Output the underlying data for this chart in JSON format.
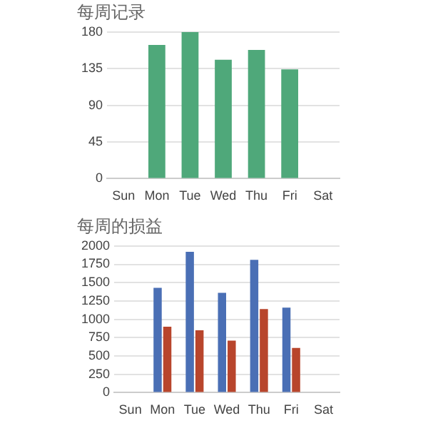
{
  "chart_data": [
    {
      "type": "bar",
      "title": "每周记录",
      "categories": [
        "Sun",
        "Mon",
        "Tue",
        "Wed",
        "Thu",
        "Fri",
        "Sat"
      ],
      "series": [
        {
          "color": "#4fa87a",
          "values": [
            null,
            164,
            180,
            146,
            158,
            134,
            null
          ]
        }
      ],
      "ylim": [
        0,
        180
      ],
      "yticks": [
        0,
        45,
        90,
        135,
        180
      ],
      "grid": "y"
    },
    {
      "type": "bar",
      "title": "每周的损益",
      "categories": [
        "Sun",
        "Mon",
        "Tue",
        "Wed",
        "Thu",
        "Fri",
        "Sat"
      ],
      "series": [
        {
          "color": "#4a6fb5",
          "values": [
            null,
            1430,
            1920,
            1360,
            1810,
            1160,
            null
          ]
        },
        {
          "color": "#b8452c",
          "values": [
            null,
            900,
            850,
            710,
            1140,
            610,
            null
          ]
        }
      ],
      "ylim": [
        0,
        2000
      ],
      "yticks": [
        0,
        250,
        500,
        750,
        1000,
        1250,
        1500,
        1750,
        2000
      ],
      "grid": "y"
    }
  ]
}
